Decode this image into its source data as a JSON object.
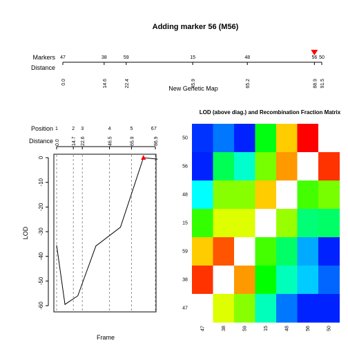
{
  "chart_data": [
    {
      "type": "line",
      "title": "Adding marker 56 (M56)",
      "row_labels": {
        "markers": "Markers",
        "distance": "Distance"
      },
      "xlabel": "New Genetic Map",
      "markers": [
        "47",
        "38",
        "59",
        "15",
        "48",
        "56",
        "50"
      ],
      "distances": [
        0.0,
        14.6,
        22.4,
        45.9,
        65.2,
        88.9,
        91.5
      ],
      "distance_labels": [
        "0.0",
        "14.6",
        "22.4",
        "45.9",
        "65.2",
        "88.9",
        "91.5"
      ],
      "highlight_marker": "56",
      "highlight_color": "#ff0000",
      "xlim": [
        0,
        91.5
      ]
    },
    {
      "type": "line",
      "row_labels": {
        "position": "Position",
        "distance": "Distance"
      },
      "xlabel": "Frame",
      "ylabel": "LOD",
      "positions": [
        "1",
        "2",
        "3",
        "4",
        "5",
        "6",
        "7"
      ],
      "position_distances": [
        0.0,
        14.7,
        22.6,
        46.5,
        65.9,
        86.9
      ],
      "position_distance_labels": [
        "0.0",
        "14.7",
        "22.6",
        "46.5",
        "65.9",
        "86.9"
      ],
      "x": [
        0,
        7.35,
        18.65,
        34.55,
        56.2,
        76.4,
        88.9
      ],
      "y": [
        -35.5,
        -59.5,
        -56.0,
        -35.8,
        -28.2,
        0.0,
        -0.6
      ],
      "ylim": [
        -61,
        2
      ],
      "yticks": [
        0,
        -10,
        -20,
        -30,
        -40,
        -50,
        -60
      ],
      "ytick_labels": [
        "0",
        "-10",
        "-20",
        "-30",
        "-40",
        "-50",
        "-60"
      ],
      "max_marker_color": "#ff0000"
    },
    {
      "type": "heatmap",
      "title": "LOD (above diag.) and Recombination Fraction Matrix",
      "row_labels": [
        "50",
        "56",
        "48",
        "15",
        "59",
        "38",
        "47"
      ],
      "col_labels": [
        "47",
        "38",
        "59",
        "15",
        "48",
        "56",
        "50"
      ],
      "cells": [
        [
          "#0033ff",
          "#0077ff",
          "#0022ff",
          "#00ff11",
          "#ffcc00",
          "#ff0000",
          "#ffffff"
        ],
        [
          "#0022ff",
          "#00ff55",
          "#00ffcc",
          "#77ff00",
          "#ff9900",
          "#ffffff",
          "#ff3300"
        ],
        [
          "#00ffff",
          "#88ff00",
          "#88ff00",
          "#ffcc00",
          "#ffffff",
          "#44ff00",
          "#77ff00"
        ],
        [
          "#33ff00",
          "#ddff00",
          "#ddff00",
          "#ffffff",
          "#99ff00",
          "#00ff77",
          "#00ff66"
        ],
        [
          "#ffcc00",
          "#ff5500",
          "#ffffff",
          "#44ff00",
          "#00ff66",
          "#00aaff",
          "#0022ff"
        ],
        [
          "#ff3300",
          "#ffffff",
          "#ff9900",
          "#00ff00",
          "#00ffbb",
          "#00ccff",
          "#0066ff"
        ],
        [
          "#ffffff",
          "#ddff00",
          "#88ff00",
          "#00ffbb",
          "#0077ff",
          "#0022ff",
          "#0022ff"
        ]
      ]
    }
  ]
}
